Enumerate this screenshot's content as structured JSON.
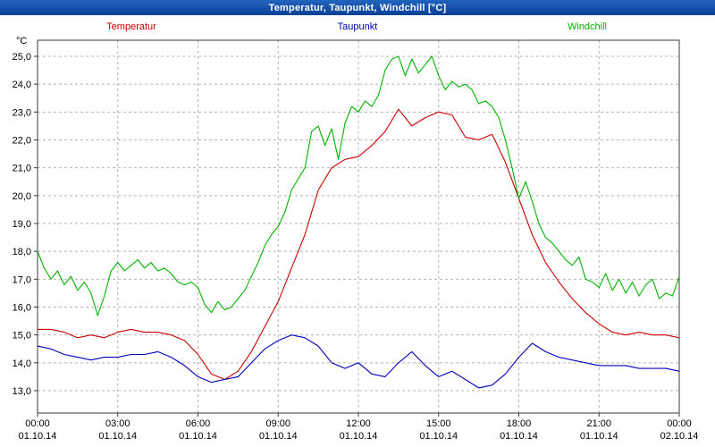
{
  "window": {
    "title": "Temperatur, Taupunkt, Windchill [°C]"
  },
  "legend": [
    {
      "label": "Temperatur",
      "color": "#cc0000"
    },
    {
      "label": "Taupunkt",
      "color": "#0000bb"
    },
    {
      "label": "Windchill",
      "color": "#00b400"
    }
  ],
  "chart_data": {
    "type": "line",
    "title": "Temperatur, Taupunkt, Windchill [°C]",
    "xlabel": "",
    "ylabel": "°C",
    "grid": true,
    "legend_position": "top",
    "xlim_hours": [
      0,
      24
    ],
    "ylim": [
      12.2,
      25.6
    ],
    "yticks": [
      {
        "value": 25,
        "label": "25,0"
      },
      {
        "value": 24,
        "label": "24,0"
      },
      {
        "value": 23,
        "label": "23,0"
      },
      {
        "value": 22,
        "label": "22,0"
      },
      {
        "value": 21,
        "label": "21,0"
      },
      {
        "value": 20,
        "label": "20,0"
      },
      {
        "value": 19,
        "label": "19,0"
      },
      {
        "value": 18,
        "label": "18,0"
      },
      {
        "value": 17,
        "label": "17,0"
      },
      {
        "value": 16,
        "label": "16,0"
      },
      {
        "value": 15,
        "label": "15,0"
      },
      {
        "value": 14,
        "label": "14,0"
      },
      {
        "value": 13,
        "label": "13,0"
      }
    ],
    "xticks": [
      {
        "hour": 0,
        "time": "00:00",
        "date": "01.10.14"
      },
      {
        "hour": 3,
        "time": "03:00",
        "date": "01.10.14"
      },
      {
        "hour": 6,
        "time": "06:00",
        "date": "01.10.14"
      },
      {
        "hour": 9,
        "time": "09:00",
        "date": "01.10.14"
      },
      {
        "hour": 12,
        "time": "12:00",
        "date": "01.10.14"
      },
      {
        "hour": 15,
        "time": "15:00",
        "date": "01.10.14"
      },
      {
        "hour": 18,
        "time": "18:00",
        "date": "01.10.14"
      },
      {
        "hour": 21,
        "time": "21:00",
        "date": "01.10.14"
      },
      {
        "hour": 24,
        "time": "00:00",
        "date": "02.10.14"
      }
    ],
    "series": [
      {
        "name": "Temperatur",
        "color": "#cc0000",
        "points": [
          [
            0,
            15.2
          ],
          [
            0.5,
            15.2
          ],
          [
            1,
            15.1
          ],
          [
            1.5,
            14.9
          ],
          [
            2,
            15.0
          ],
          [
            2.5,
            14.9
          ],
          [
            3,
            15.1
          ],
          [
            3.5,
            15.2
          ],
          [
            4,
            15.1
          ],
          [
            4.5,
            15.1
          ],
          [
            5,
            15.0
          ],
          [
            5.5,
            14.8
          ],
          [
            6,
            14.3
          ],
          [
            6.5,
            13.6
          ],
          [
            7,
            13.4
          ],
          [
            7.5,
            13.7
          ],
          [
            8,
            14.4
          ],
          [
            8.5,
            15.3
          ],
          [
            9,
            16.2
          ],
          [
            9.5,
            17.4
          ],
          [
            10,
            18.6
          ],
          [
            10.5,
            20.2
          ],
          [
            11,
            21.0
          ],
          [
            11.5,
            21.3
          ],
          [
            12,
            21.4
          ],
          [
            12.5,
            21.8
          ],
          [
            13,
            22.3
          ],
          [
            13.5,
            23.1
          ],
          [
            14,
            22.5
          ],
          [
            14.5,
            22.8
          ],
          [
            15,
            23.0
          ],
          [
            15.5,
            22.9
          ],
          [
            16,
            22.1
          ],
          [
            16.5,
            22.0
          ],
          [
            17,
            22.2
          ],
          [
            17.5,
            21.2
          ],
          [
            18,
            19.9
          ],
          [
            18.5,
            18.6
          ],
          [
            19,
            17.6
          ],
          [
            19.5,
            16.9
          ],
          [
            20,
            16.3
          ],
          [
            20.5,
            15.8
          ],
          [
            21,
            15.4
          ],
          [
            21.5,
            15.1
          ],
          [
            22,
            15.0
          ],
          [
            22.5,
            15.1
          ],
          [
            23,
            15.0
          ],
          [
            23.5,
            15.0
          ],
          [
            24,
            14.9
          ]
        ]
      },
      {
        "name": "Taupunkt",
        "color": "#0000bb",
        "points": [
          [
            0,
            14.6
          ],
          [
            0.5,
            14.5
          ],
          [
            1,
            14.3
          ],
          [
            1.5,
            14.2
          ],
          [
            2,
            14.1
          ],
          [
            2.5,
            14.2
          ],
          [
            3,
            14.2
          ],
          [
            3.5,
            14.3
          ],
          [
            4,
            14.3
          ],
          [
            4.5,
            14.4
          ],
          [
            5,
            14.2
          ],
          [
            5.5,
            13.9
          ],
          [
            6,
            13.5
          ],
          [
            6.5,
            13.3
          ],
          [
            7,
            13.4
          ],
          [
            7.5,
            13.5
          ],
          [
            8,
            14.0
          ],
          [
            8.5,
            14.5
          ],
          [
            9,
            14.8
          ],
          [
            9.5,
            15.0
          ],
          [
            10,
            14.9
          ],
          [
            10.5,
            14.6
          ],
          [
            11,
            14.0
          ],
          [
            11.5,
            13.8
          ],
          [
            12,
            14.0
          ],
          [
            12.5,
            13.6
          ],
          [
            13,
            13.5
          ],
          [
            13.5,
            14.0
          ],
          [
            14,
            14.4
          ],
          [
            14.5,
            13.9
          ],
          [
            15,
            13.5
          ],
          [
            15.5,
            13.7
          ],
          [
            16,
            13.4
          ],
          [
            16.5,
            13.1
          ],
          [
            17,
            13.2
          ],
          [
            17.5,
            13.6
          ],
          [
            18,
            14.2
          ],
          [
            18.5,
            14.7
          ],
          [
            19,
            14.4
          ],
          [
            19.5,
            14.2
          ],
          [
            20,
            14.1
          ],
          [
            20.5,
            14.0
          ],
          [
            21,
            13.9
          ],
          [
            21.5,
            13.9
          ],
          [
            22,
            13.9
          ],
          [
            22.5,
            13.8
          ],
          [
            23,
            13.8
          ],
          [
            23.5,
            13.8
          ],
          [
            24,
            13.7
          ]
        ]
      },
      {
        "name": "Windchill",
        "color": "#00b400",
        "points": [
          [
            0,
            18.0
          ],
          [
            0.25,
            17.4
          ],
          [
            0.5,
            17.0
          ],
          [
            0.75,
            17.3
          ],
          [
            1,
            16.8
          ],
          [
            1.25,
            17.1
          ],
          [
            1.5,
            16.6
          ],
          [
            1.75,
            16.9
          ],
          [
            2,
            16.5
          ],
          [
            2.25,
            15.7
          ],
          [
            2.5,
            16.4
          ],
          [
            2.75,
            17.3
          ],
          [
            3,
            17.6
          ],
          [
            3.25,
            17.3
          ],
          [
            3.5,
            17.5
          ],
          [
            3.75,
            17.7
          ],
          [
            4,
            17.4
          ],
          [
            4.25,
            17.6
          ],
          [
            4.5,
            17.3
          ],
          [
            4.75,
            17.4
          ],
          [
            5,
            17.2
          ],
          [
            5.25,
            16.9
          ],
          [
            5.5,
            16.8
          ],
          [
            5.75,
            16.9
          ],
          [
            6,
            16.7
          ],
          [
            6.25,
            16.1
          ],
          [
            6.5,
            15.8
          ],
          [
            6.75,
            16.2
          ],
          [
            7,
            15.9
          ],
          [
            7.25,
            16.0
          ],
          [
            7.5,
            16.3
          ],
          [
            7.75,
            16.6
          ],
          [
            8,
            17.1
          ],
          [
            8.25,
            17.6
          ],
          [
            8.5,
            18.2
          ],
          [
            8.75,
            18.6
          ],
          [
            9,
            18.9
          ],
          [
            9.25,
            19.4
          ],
          [
            9.5,
            20.2
          ],
          [
            9.75,
            20.6
          ],
          [
            10,
            21.0
          ],
          [
            10.25,
            22.3
          ],
          [
            10.5,
            22.5
          ],
          [
            10.75,
            21.8
          ],
          [
            11,
            22.4
          ],
          [
            11.25,
            21.3
          ],
          [
            11.5,
            22.6
          ],
          [
            11.75,
            23.2
          ],
          [
            12,
            23.0
          ],
          [
            12.25,
            23.4
          ],
          [
            12.5,
            23.2
          ],
          [
            12.75,
            23.6
          ],
          [
            13,
            24.5
          ],
          [
            13.25,
            24.9
          ],
          [
            13.5,
            25.0
          ],
          [
            13.75,
            24.3
          ],
          [
            14,
            24.9
          ],
          [
            14.25,
            24.4
          ],
          [
            14.5,
            24.7
          ],
          [
            14.75,
            25.0
          ],
          [
            15,
            24.3
          ],
          [
            15.25,
            23.8
          ],
          [
            15.5,
            24.1
          ],
          [
            15.75,
            23.9
          ],
          [
            16,
            24.0
          ],
          [
            16.25,
            23.8
          ],
          [
            16.5,
            23.3
          ],
          [
            16.75,
            23.4
          ],
          [
            17,
            23.2
          ],
          [
            17.25,
            22.8
          ],
          [
            17.5,
            22.0
          ],
          [
            17.75,
            21.0
          ],
          [
            18,
            19.9
          ],
          [
            18.25,
            20.5
          ],
          [
            18.5,
            19.8
          ],
          [
            18.75,
            19.0
          ],
          [
            19,
            18.5
          ],
          [
            19.25,
            18.3
          ],
          [
            19.5,
            18.0
          ],
          [
            19.75,
            17.7
          ],
          [
            20,
            17.5
          ],
          [
            20.25,
            17.8
          ],
          [
            20.5,
            17.0
          ],
          [
            20.75,
            16.9
          ],
          [
            21,
            16.7
          ],
          [
            21.25,
            17.2
          ],
          [
            21.5,
            16.6
          ],
          [
            21.75,
            17.0
          ],
          [
            22,
            16.5
          ],
          [
            22.25,
            16.9
          ],
          [
            22.5,
            16.4
          ],
          [
            22.75,
            16.8
          ],
          [
            23,
            17.0
          ],
          [
            23.25,
            16.3
          ],
          [
            23.5,
            16.5
          ],
          [
            23.75,
            16.4
          ],
          [
            24,
            17.1
          ]
        ]
      }
    ]
  }
}
